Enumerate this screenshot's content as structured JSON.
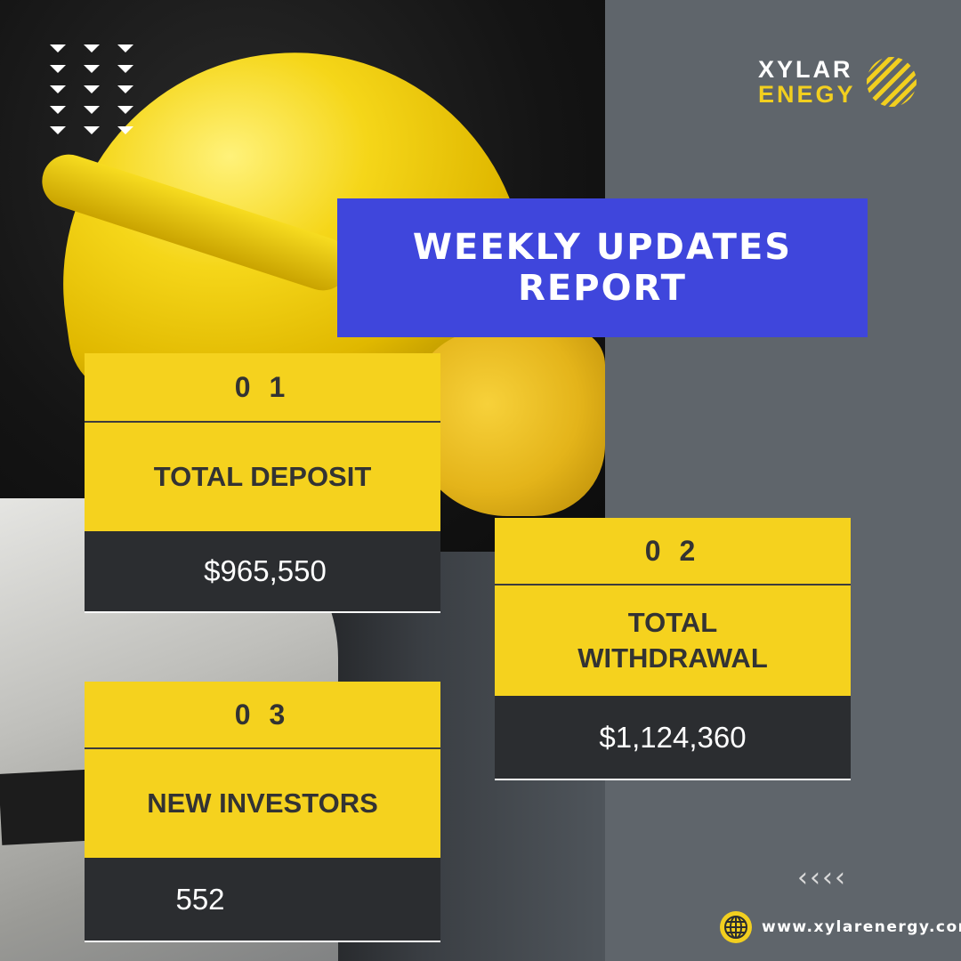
{
  "brand": {
    "line1": "XYLAR",
    "line2": "ENEGY",
    "mark_icon": "striped-circle-logo",
    "accent_color": "#f2cf1f"
  },
  "title": {
    "line1": "WEEKLY UPDATES",
    "line2": "REPORT",
    "banner_color": "#3f46dc"
  },
  "cards": [
    {
      "number": "0 1",
      "label": "TOTAL DEPOSIT",
      "value": "$965,550"
    },
    {
      "number": "0 2",
      "label_line1": "TOTAL",
      "label_line2": "WITHDRAWAL",
      "value": "$1,124,360"
    },
    {
      "number": "0 3",
      "label": "NEW INVESTORS",
      "value": "552"
    }
  ],
  "decorations": {
    "arrow_icon": "down-triangle-icon",
    "chevron_icon": "chevron-left-icon",
    "chevrons": [
      "‹",
      "‹",
      "‹",
      "‹"
    ]
  },
  "footer": {
    "website": "www.xylarenergy.com",
    "icon": "globe-icon"
  },
  "colors": {
    "card_yellow": "#f5d21e",
    "card_dark": "#2b2d30",
    "panel_gray": "#5f656b"
  }
}
